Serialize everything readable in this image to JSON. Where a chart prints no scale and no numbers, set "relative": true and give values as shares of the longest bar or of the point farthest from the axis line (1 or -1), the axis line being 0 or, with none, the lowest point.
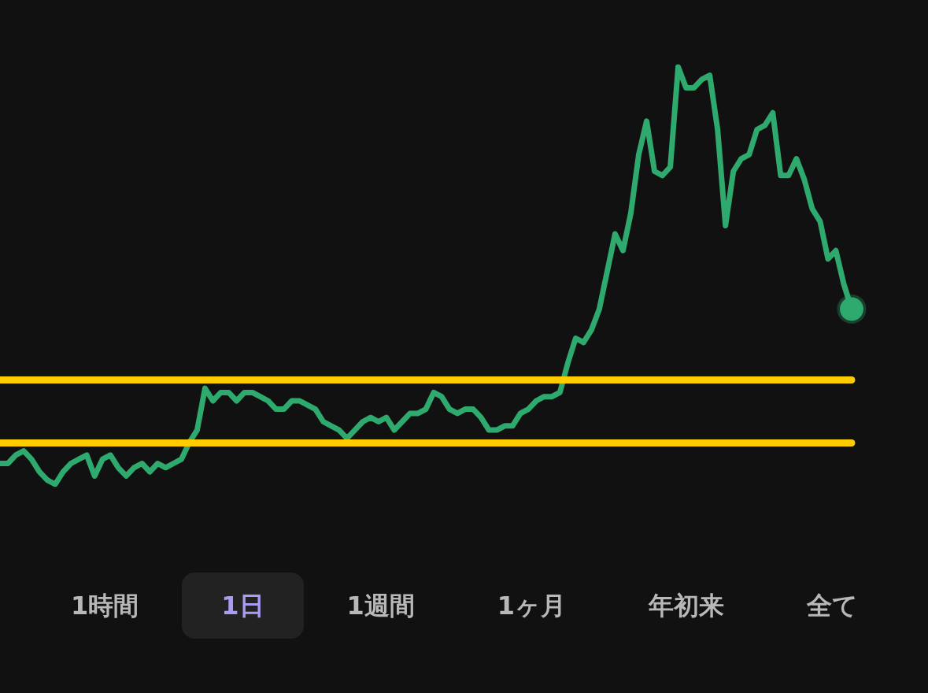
{
  "chart_data": {
    "type": "line",
    "relative": true,
    "categories": [
      null,
      null,
      null,
      null,
      null,
      null,
      null,
      null,
      null,
      null,
      null,
      null,
      null,
      null,
      null,
      null,
      null,
      null,
      null,
      null,
      null,
      null,
      null,
      null,
      null,
      null,
      null,
      null,
      null,
      null,
      null,
      null,
      null,
      null,
      null,
      null,
      null,
      null,
      null,
      null,
      null,
      null,
      null,
      null,
      null,
      null,
      null,
      null,
      null,
      null,
      null,
      null,
      null,
      null,
      null,
      null,
      null,
      null,
      null,
      null,
      null,
      null,
      null,
      null,
      null,
      null,
      null,
      null,
      null,
      null,
      null,
      null,
      null,
      null,
      null,
      null,
      null,
      null,
      null,
      null,
      null,
      null,
      null,
      null,
      null,
      null,
      null,
      null,
      null,
      null,
      null,
      null,
      null,
      null,
      null,
      null,
      null,
      null,
      null,
      null,
      null,
      null,
      null,
      null,
      null,
      null,
      null,
      null,
      null
    ],
    "series": [
      {
        "color": "#2eaa6e",
        "values": [
          0.05,
          0.05,
          0.07,
          0.08,
          0.06,
          0.03,
          0.01,
          0.0,
          0.03,
          0.05,
          0.06,
          0.07,
          0.02,
          0.06,
          0.07,
          0.04,
          0.02,
          0.04,
          0.05,
          0.03,
          0.05,
          0.04,
          0.05,
          0.06,
          0.1,
          0.13,
          0.23,
          0.2,
          0.22,
          0.22,
          0.2,
          0.22,
          0.22,
          0.21,
          0.2,
          0.18,
          0.18,
          0.2,
          0.2,
          0.19,
          0.18,
          0.15,
          0.14,
          0.13,
          0.11,
          0.13,
          0.15,
          0.16,
          0.15,
          0.16,
          0.13,
          0.15,
          0.17,
          0.17,
          0.18,
          0.22,
          0.21,
          0.18,
          0.17,
          0.18,
          0.18,
          0.16,
          0.13,
          0.13,
          0.14,
          0.14,
          0.17,
          0.18,
          0.2,
          0.21,
          0.21,
          0.22,
          0.29,
          0.35,
          0.34,
          0.37,
          0.42,
          0.51,
          0.6,
          0.56,
          0.65,
          0.79,
          0.87,
          0.75,
          0.74,
          0.76,
          1.0,
          0.95,
          0.95,
          0.97,
          0.98,
          0.85,
          0.62,
          0.75,
          0.78,
          0.79,
          0.85,
          0.86,
          0.89,
          0.74,
          0.74,
          0.78,
          0.73,
          0.66,
          0.63,
          0.54,
          0.56,
          0.48,
          0.42
        ]
      }
    ],
    "ref_lines": [
      {
        "axis": "y",
        "value": 0.25,
        "color": "#ffcc00"
      },
      {
        "axis": "y",
        "value": 0.1,
        "color": "#ffcc00"
      }
    ],
    "marker": "none",
    "tick_labels": false,
    "annotations": [
      "1時間",
      "1日",
      "1週間",
      "1ヶ月",
      "年初来",
      "全て"
    ]
  }
}
